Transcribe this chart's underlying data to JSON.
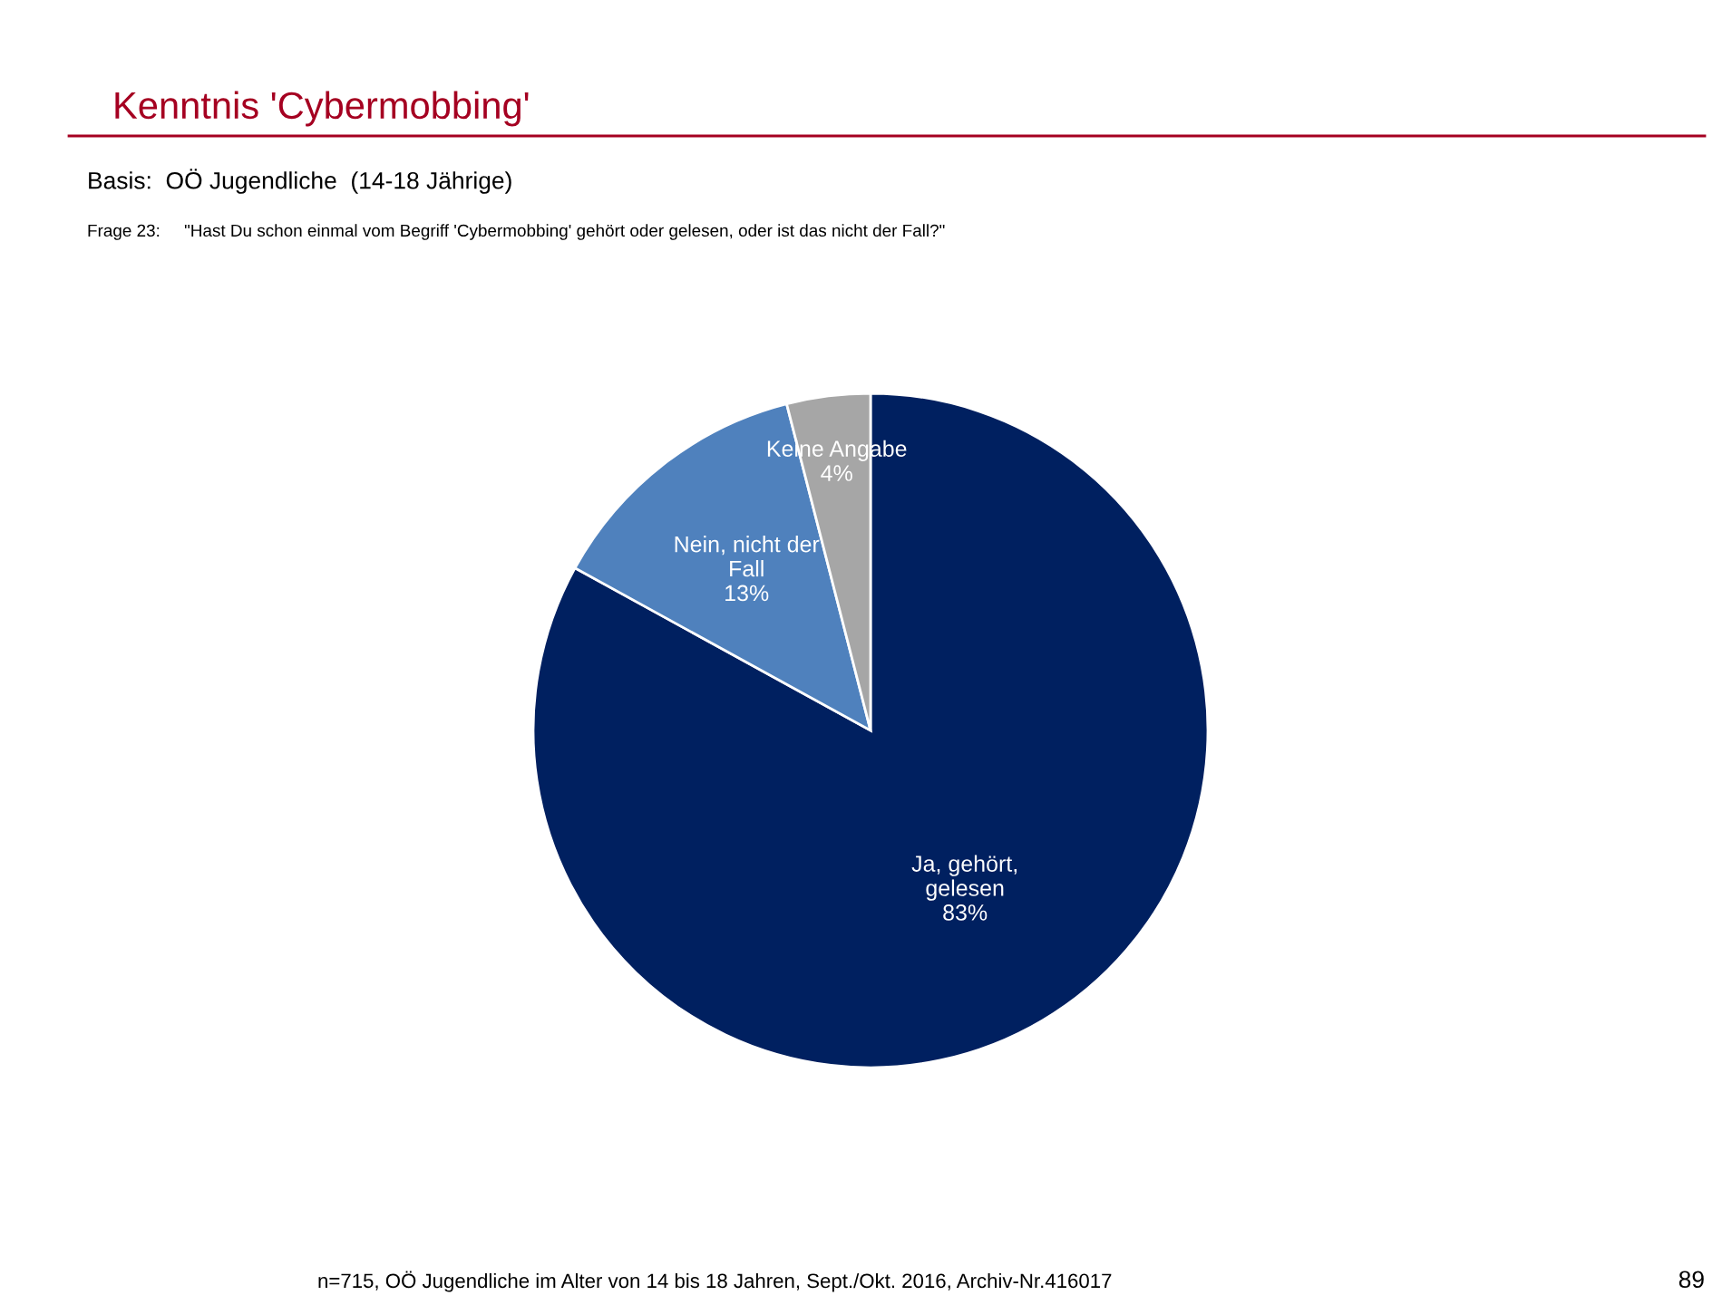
{
  "chart_data": {
    "type": "pie",
    "title": "Kenntnis 'Cybermobbing'",
    "subtitle": "Basis:  OÖ Jugendliche  (14-18 Jährige)",
    "annotations": [
      "Frage 23:     \"Hast Du schon einmal vom Begriff 'Cybermobbing' gehört oder gelesen, oder ist das nicht der Fall?\"",
      "n=715, OÖ Jugendliche im Alter von 14 bis 18 Jahren, Sept./Okt. 2016, Archiv-Nr.416017",
      "89"
    ],
    "categories": [
      "Ja, gehört,\ngelesen",
      "Nein, nicht der\nFall",
      "Keine Angabe"
    ],
    "values": [
      83,
      13,
      4
    ],
    "colors": [
      "#002060",
      "#4f81bd",
      "#a6a6a6"
    ],
    "value_labels": [
      "83%",
      "13%",
      "4%"
    ]
  }
}
